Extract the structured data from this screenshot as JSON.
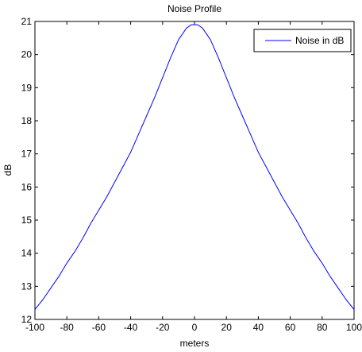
{
  "chart_data": {
    "type": "line",
    "title": "Noise Profile",
    "xlabel": "meters",
    "ylabel": "dB",
    "xlim": [
      -100,
      100
    ],
    "ylim": [
      12,
      21
    ],
    "xticks": [
      -100,
      -80,
      -60,
      -40,
      -20,
      0,
      20,
      40,
      60,
      80,
      100
    ],
    "yticks": [
      12,
      13,
      14,
      15,
      16,
      17,
      18,
      19,
      20,
      21
    ],
    "grid": false,
    "legend_position": "top-right",
    "series": [
      {
        "name": "Noise in dB",
        "color": "#0000ff",
        "x": [
          -100,
          -95,
          -90,
          -85,
          -80,
          -75,
          -70,
          -65,
          -60,
          -55,
          -50,
          -45,
          -40,
          -35,
          -30,
          -25,
          -20,
          -15,
          -10,
          -5,
          -2,
          0,
          2,
          5,
          10,
          15,
          20,
          25,
          30,
          35,
          40,
          45,
          50,
          55,
          60,
          65,
          70,
          75,
          80,
          85,
          90,
          95,
          100
        ],
        "y": [
          12.3,
          12.6,
          12.95,
          13.3,
          13.7,
          14.05,
          14.45,
          14.9,
          15.3,
          15.7,
          16.15,
          16.6,
          17.05,
          17.6,
          18.15,
          18.7,
          19.3,
          19.9,
          20.45,
          20.8,
          20.9,
          20.9,
          20.9,
          20.8,
          20.45,
          19.9,
          19.3,
          18.7,
          18.15,
          17.6,
          17.05,
          16.6,
          16.15,
          15.7,
          15.3,
          14.9,
          14.45,
          14.05,
          13.7,
          13.3,
          12.95,
          12.6,
          12.3
        ]
      }
    ]
  }
}
